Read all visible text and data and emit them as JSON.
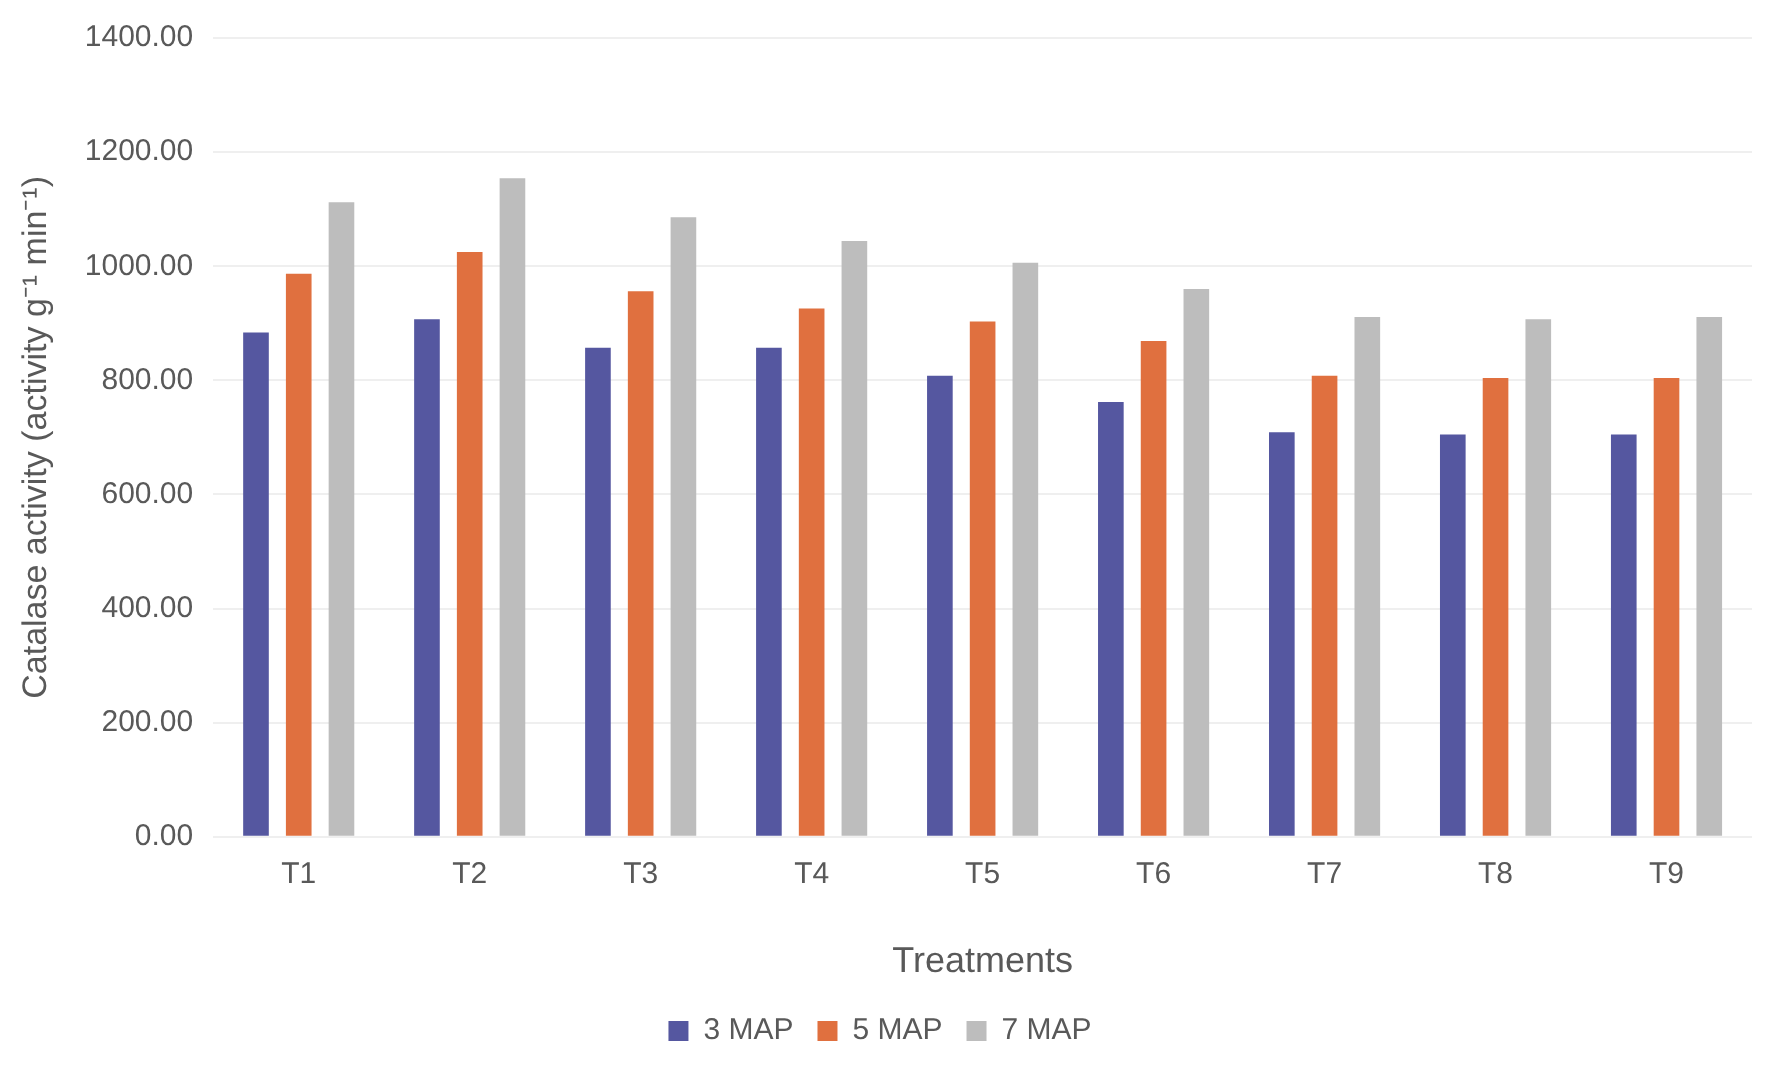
{
  "chart_data": {
    "type": "bar",
    "xlabel": "Treatments",
    "ylabel": "Catalase activity (activity g⁻¹ min⁻¹)",
    "categories": [
      "T1",
      "T2",
      "T3",
      "T4",
      "T5",
      "T6",
      "T7",
      "T8",
      "T9"
    ],
    "series": [
      {
        "name": "3 MAP",
        "color": "#5557a0",
        "values": [
          884,
          907,
          857,
          857,
          808,
          762,
          709,
          705,
          705
        ]
      },
      {
        "name": "5 MAP",
        "color": "#e0703f",
        "values": [
          987,
          1025,
          956,
          926,
          903,
          869,
          808,
          804,
          804
        ]
      },
      {
        "name": "7 MAP",
        "color": "#bdbdbd",
        "values": [
          1112,
          1154,
          1086,
          1044,
          1006,
          960,
          911,
          907,
          911
        ]
      }
    ],
    "ylim": [
      0,
      1400
    ],
    "yticks": [
      {
        "value": 0,
        "label": "0.00"
      },
      {
        "value": 200,
        "label": "200.00"
      },
      {
        "value": 400,
        "label": "400.00"
      },
      {
        "value": 600,
        "label": "600.00"
      },
      {
        "value": 800,
        "label": "800.00"
      },
      {
        "value": 1000,
        "label": "1000.00"
      },
      {
        "value": 1200,
        "label": "1200.00"
      },
      {
        "value": 1400,
        "label": "1400.00"
      }
    ],
    "grid": "y",
    "legend": "bottom"
  }
}
